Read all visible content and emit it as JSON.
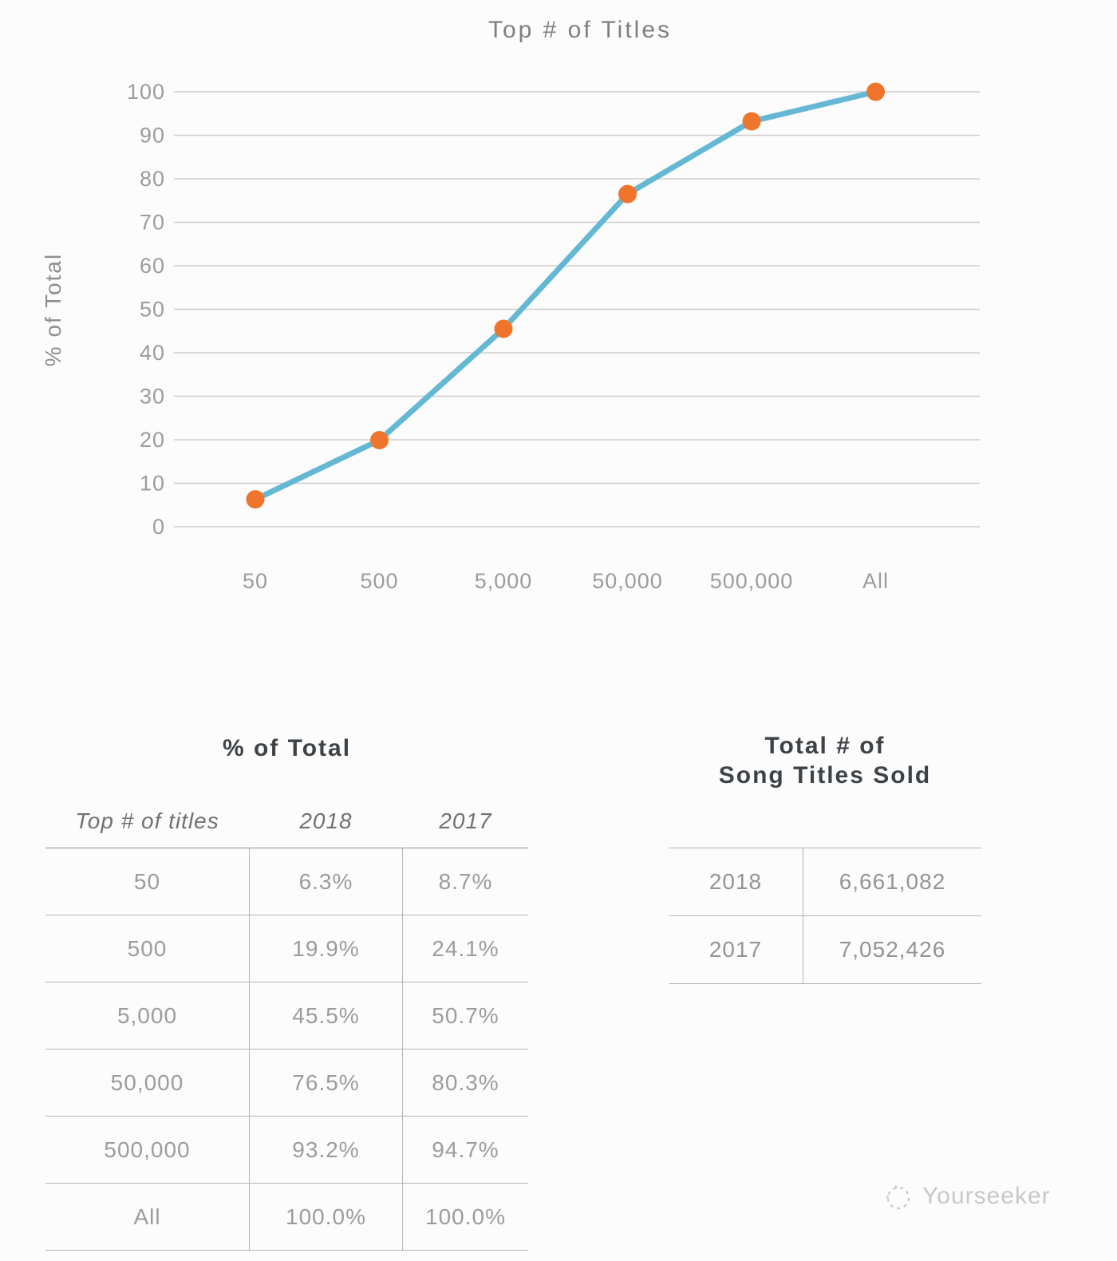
{
  "chart_data": {
    "type": "line",
    "title": "Top # of Titles",
    "xlabel": "",
    "ylabel": "% of Total",
    "categories": [
      "50",
      "500",
      "5,000",
      "50,000",
      "500,000",
      "All"
    ],
    "series": [
      {
        "name": "2018",
        "values": [
          6.3,
          19.9,
          45.5,
          76.5,
          93.2,
          100.0
        ]
      }
    ],
    "ylim": [
      0,
      100
    ],
    "y_ticks": [
      0,
      10,
      20,
      30,
      40,
      50,
      60,
      70,
      80,
      90,
      100
    ],
    "grid": true,
    "legend": false,
    "line_color": "#65b8d4",
    "marker_color": "#f0752c"
  },
  "left_table": {
    "title": "% of Total",
    "columns": [
      "Top # of titles",
      "2018",
      "2017"
    ],
    "rows": [
      [
        "50",
        "6.3%",
        "8.7%"
      ],
      [
        "500",
        "19.9%",
        "24.1%"
      ],
      [
        "5,000",
        "45.5%",
        "50.7%"
      ],
      [
        "50,000",
        "76.5%",
        "80.3%"
      ],
      [
        "500,000",
        "93.2%",
        "94.7%"
      ],
      [
        "All",
        "100.0%",
        "100.0%"
      ]
    ]
  },
  "right_table": {
    "title_line1": "Total # of",
    "title_line2": "Song Titles Sold",
    "rows": [
      [
        "2018",
        "6,661,082"
      ],
      [
        "2017",
        "7,052,426"
      ]
    ]
  },
  "watermark": {
    "text": "Yourseeker"
  }
}
